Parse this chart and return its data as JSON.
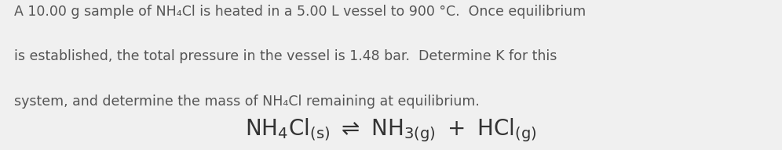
{
  "background_color": "#f0f0f0",
  "paragraph_text_color": "#555555",
  "equation_text_color": "#333333",
  "paragraph_fontsize": 12.5,
  "equation_fontsize": 20,
  "line1": "A 10.00 g sample of NH₄Cl is heated in a 5.00 L vessel to 900 °C.  Once equilibrium",
  "line2": "is established, the total pressure in the vessel is 1.48 bar.  Determine K for this",
  "line3": "system, and determine the mass of NH₄Cl remaining at equilibrium.",
  "eq_main": "$\\mathrm{NH_4Cl_{(s)}\\ \\rightleftharpoons\\ NH_{3(g)}\\ +\\ HCl_{(g)}}$",
  "figwidth": 9.96,
  "figheight": 1.92,
  "dpi": 100
}
